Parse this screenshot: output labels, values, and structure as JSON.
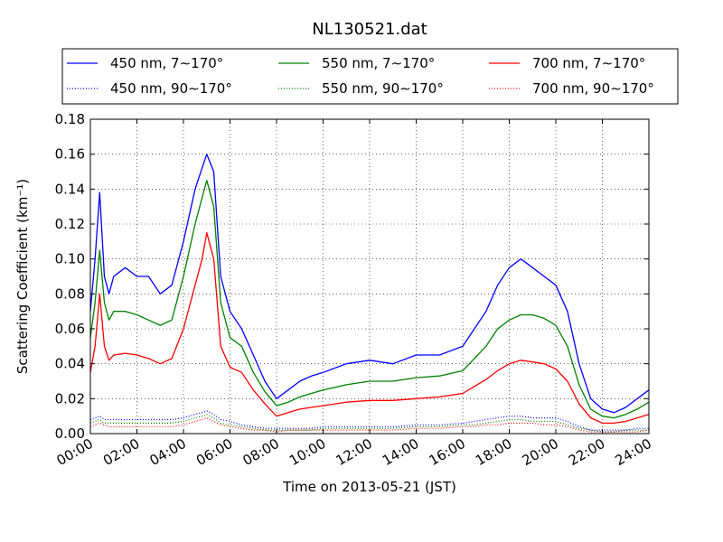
{
  "chart_data": {
    "type": "line",
    "title": "NL130521.dat",
    "xlabel": "Time on 2013-05-21 (JST)",
    "ylabel": "Scattering Coefficient (km⁻¹)",
    "xlim": [
      0,
      24
    ],
    "ylim": [
      0,
      0.18
    ],
    "grid": true,
    "legend_position": "top",
    "x_ticks": [
      {
        "value": 0,
        "label": "00:00"
      },
      {
        "value": 2,
        "label": "02:00"
      },
      {
        "value": 4,
        "label": "04:00"
      },
      {
        "value": 6,
        "label": "06:00"
      },
      {
        "value": 8,
        "label": "08:00"
      },
      {
        "value": 10,
        "label": "10:00"
      },
      {
        "value": 12,
        "label": "12:00"
      },
      {
        "value": 14,
        "label": "14:00"
      },
      {
        "value": 16,
        "label": "16:00"
      },
      {
        "value": 18,
        "label": "18:00"
      },
      {
        "value": 20,
        "label": "20:00"
      },
      {
        "value": 22,
        "label": "22:00"
      },
      {
        "value": 24,
        "label": "24:00"
      }
    ],
    "y_ticks": [
      {
        "value": 0.0,
        "label": "0.00"
      },
      {
        "value": 0.02,
        "label": "0.02"
      },
      {
        "value": 0.04,
        "label": "0.04"
      },
      {
        "value": 0.06,
        "label": "0.06"
      },
      {
        "value": 0.08,
        "label": "0.08"
      },
      {
        "value": 0.1,
        "label": "0.10"
      },
      {
        "value": 0.12,
        "label": "0.12"
      },
      {
        "value": 0.14,
        "label": "0.14"
      },
      {
        "value": 0.16,
        "label": "0.16"
      },
      {
        "value": 0.18,
        "label": "0.18"
      }
    ],
    "x": [
      0,
      0.2,
      0.4,
      0.6,
      0.8,
      1,
      1.5,
      2,
      2.5,
      3,
      3.5,
      4,
      4.5,
      4.8,
      5,
      5.3,
      5.6,
      6,
      6.5,
      7,
      7.5,
      8,
      8.5,
      9,
      9.5,
      10,
      11,
      12,
      13,
      14,
      15,
      16,
      16.5,
      17,
      17.5,
      18,
      18.5,
      19,
      19.5,
      20,
      20.5,
      21,
      21.5,
      22,
      22.5,
      23,
      23.5,
      24
    ],
    "series": [
      {
        "name": "450 nm, 7∼170°",
        "color": "#0000ff",
        "style": "solid",
        "values": [
          0.07,
          0.1,
          0.138,
          0.09,
          0.08,
          0.09,
          0.095,
          0.09,
          0.09,
          0.08,
          0.085,
          0.11,
          0.14,
          0.152,
          0.16,
          0.15,
          0.09,
          0.07,
          0.06,
          0.045,
          0.03,
          0.02,
          0.025,
          0.03,
          0.033,
          0.035,
          0.04,
          0.042,
          0.04,
          0.045,
          0.045,
          0.05,
          0.06,
          0.07,
          0.085,
          0.095,
          0.1,
          0.095,
          0.09,
          0.085,
          0.07,
          0.04,
          0.02,
          0.014,
          0.012,
          0.015,
          0.02,
          0.025
        ]
      },
      {
        "name": "550 nm, 7∼170°",
        "color": "#008000",
        "style": "solid",
        "values": [
          0.055,
          0.075,
          0.105,
          0.075,
          0.065,
          0.07,
          0.07,
          0.068,
          0.065,
          0.062,
          0.065,
          0.09,
          0.12,
          0.135,
          0.145,
          0.13,
          0.075,
          0.055,
          0.05,
          0.035,
          0.024,
          0.016,
          0.018,
          0.021,
          0.023,
          0.025,
          0.028,
          0.03,
          0.03,
          0.032,
          0.033,
          0.036,
          0.043,
          0.05,
          0.06,
          0.065,
          0.068,
          0.068,
          0.066,
          0.062,
          0.05,
          0.028,
          0.014,
          0.01,
          0.009,
          0.011,
          0.014,
          0.018
        ]
      },
      {
        "name": "700 nm, 7∼170°",
        "color": "#ff0000",
        "style": "solid",
        "values": [
          0.035,
          0.05,
          0.08,
          0.05,
          0.042,
          0.045,
          0.046,
          0.045,
          0.043,
          0.04,
          0.043,
          0.06,
          0.085,
          0.1,
          0.115,
          0.1,
          0.05,
          0.038,
          0.035,
          0.025,
          0.017,
          0.01,
          0.012,
          0.014,
          0.015,
          0.016,
          0.018,
          0.019,
          0.019,
          0.02,
          0.021,
          0.023,
          0.027,
          0.031,
          0.036,
          0.04,
          0.042,
          0.041,
          0.04,
          0.037,
          0.03,
          0.017,
          0.009,
          0.006,
          0.006,
          0.007,
          0.009,
          0.011
        ]
      },
      {
        "name": "450 nm, 90∼170°",
        "color": "#0000ff",
        "style": "dotted",
        "values": [
          0.008,
          0.009,
          0.01,
          0.008,
          0.008,
          0.008,
          0.008,
          0.008,
          0.008,
          0.008,
          0.008,
          0.009,
          0.011,
          0.012,
          0.013,
          0.011,
          0.008,
          0.007,
          0.005,
          0.004,
          0.003,
          0.003,
          0.003,
          0.003,
          0.003,
          0.004,
          0.004,
          0.004,
          0.004,
          0.005,
          0.005,
          0.006,
          0.007,
          0.008,
          0.009,
          0.01,
          0.01,
          0.009,
          0.009,
          0.009,
          0.007,
          0.004,
          0.002,
          0.002,
          0.002,
          0.002,
          0.003,
          0.003
        ]
      },
      {
        "name": "550 nm, 90∼170°",
        "color": "#008000",
        "style": "dotted",
        "values": [
          0.006,
          0.007,
          0.008,
          0.006,
          0.006,
          0.006,
          0.006,
          0.006,
          0.006,
          0.006,
          0.006,
          0.007,
          0.009,
          0.01,
          0.011,
          0.009,
          0.006,
          0.005,
          0.004,
          0.003,
          0.002,
          0.002,
          0.002,
          0.002,
          0.002,
          0.003,
          0.003,
          0.003,
          0.003,
          0.004,
          0.004,
          0.005,
          0.005,
          0.006,
          0.007,
          0.008,
          0.008,
          0.007,
          0.007,
          0.007,
          0.005,
          0.003,
          0.002,
          0.001,
          0.001,
          0.002,
          0.002,
          0.002
        ]
      },
      {
        "name": "700 nm, 90∼170°",
        "color": "#ff0000",
        "style": "dotted",
        "values": [
          0.004,
          0.005,
          0.006,
          0.005,
          0.004,
          0.004,
          0.004,
          0.004,
          0.004,
          0.004,
          0.004,
          0.005,
          0.007,
          0.008,
          0.009,
          0.007,
          0.005,
          0.004,
          0.003,
          0.002,
          0.002,
          0.001,
          0.002,
          0.002,
          0.002,
          0.002,
          0.002,
          0.002,
          0.002,
          0.003,
          0.003,
          0.004,
          0.004,
          0.005,
          0.005,
          0.006,
          0.006,
          0.006,
          0.005,
          0.005,
          0.004,
          0.002,
          0.001,
          0.001,
          0.001,
          0.001,
          0.001,
          0.002
        ]
      }
    ]
  }
}
